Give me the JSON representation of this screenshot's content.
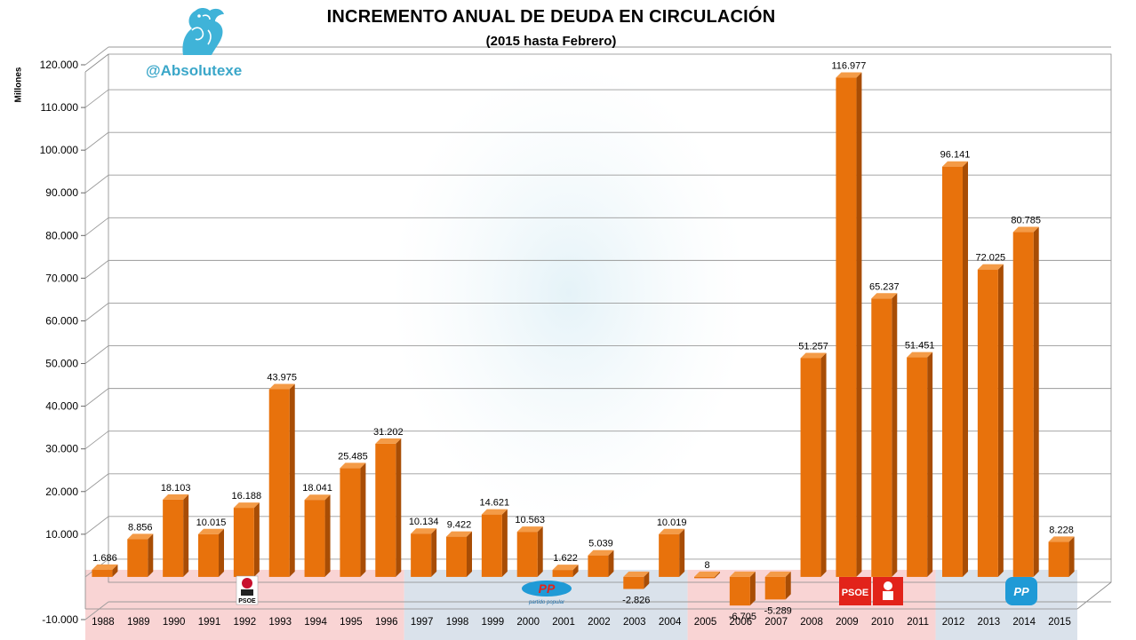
{
  "header": {
    "title": "INCREMENTO ANUAL DE DEUDA EN CIRCULACIÓN",
    "subtitle": "(2015 hasta Febrero)",
    "handle": "@Absolutexe"
  },
  "logos": [
    {
      "name": "psoe-logo-1992",
      "text": "PSOE"
    },
    {
      "name": "pp-logo-2000",
      "text": "PP",
      "caption": "partido popular"
    },
    {
      "name": "psoe-logo-2009",
      "text": "PSOE"
    },
    {
      "name": "pp-logo-2014",
      "text": "PP"
    }
  ],
  "colors": {
    "bar_front": "#e8720c",
    "bar_side": "#a84d05",
    "bar_top": "#f49b47",
    "psoe_band": "#f8cccc",
    "pp_band": "#d3dde7",
    "psoe_red": "#e2231a",
    "pp_blue": "#1f9ad6",
    "handle": "#3ba7c9"
  },
  "chart_data": {
    "type": "bar",
    "title": "INCREMENTO ANUAL DE DEUDA EN CIRCULACIÓN",
    "subtitle": "(2015 hasta Febrero)",
    "ylabel": "Millones",
    "xlabel": "",
    "ylim": [
      -10000,
      120000
    ],
    "ytick_labels": [
      "-10.000",
      "",
      "10.000",
      "20.000",
      "30.000",
      "40.000",
      "50.000",
      "60.000",
      "70.000",
      "80.000",
      "90.000",
      "100.000",
      "110.000",
      "120.000"
    ],
    "grid": true,
    "categories": [
      "1988",
      "1989",
      "1990",
      "1991",
      "1992",
      "1993",
      "1994",
      "1995",
      "1996",
      "1997",
      "1998",
      "1999",
      "2000",
      "2001",
      "2002",
      "2003",
      "2004",
      "2005",
      "2006",
      "2007",
      "2008",
      "2009",
      "2010",
      "2011",
      "2012",
      "2013",
      "2014",
      "2015"
    ],
    "values": [
      1686,
      8856,
      18103,
      10015,
      16188,
      43975,
      18041,
      25485,
      31202,
      10134,
      9422,
      14621,
      10563,
      1622,
      5039,
      -2826,
      10019,
      8,
      -6705,
      -5289,
      51257,
      116977,
      65237,
      51451,
      96141,
      72025,
      80785,
      8228
    ],
    "value_labels": [
      "1.686",
      "8.856",
      "18.103",
      "10.015",
      "16.188",
      "43.975",
      "18.041",
      "25.485",
      "31.202",
      "10.134",
      "9.422",
      "14.621",
      "10.563",
      "1.622",
      "5.039",
      "-2.826",
      "10.019",
      "8",
      "-6.705",
      "-5.289",
      "51.257",
      "116.977",
      "65.237",
      "51.451",
      "96.141",
      "72.025",
      "80.785",
      "8.228"
    ],
    "periods": [
      {
        "party": "PSOE",
        "from": "1988",
        "to": "1996"
      },
      {
        "party": "PP",
        "from": "1997",
        "to": "2004"
      },
      {
        "party": "PSOE",
        "from": "2005",
        "to": "2011"
      },
      {
        "party": "PP",
        "from": "2012",
        "to": "2015"
      }
    ]
  }
}
